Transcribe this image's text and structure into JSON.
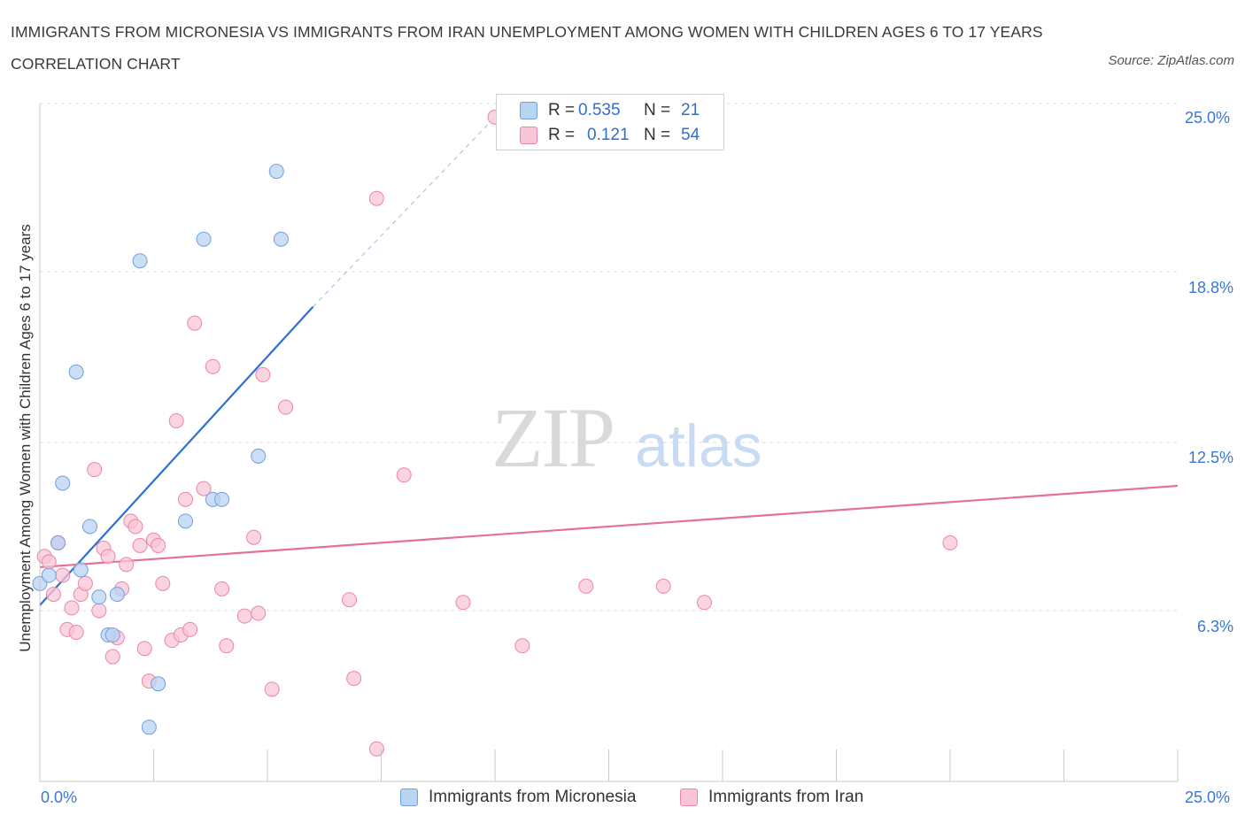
{
  "title": "IMMIGRANTS FROM MICRONESIA VS IMMIGRANTS FROM IRAN UNEMPLOYMENT AMONG WOMEN WITH CHILDREN AGES 6 TO 17 YEARS CORRELATION CHART",
  "source": "Source: ZipAtlas.com",
  "watermark": {
    "zip": "ZIP",
    "atlas": "atlas"
  },
  "legend": {
    "rows": [
      {
        "r_label": "R =",
        "r_value": "0.535",
        "n_label": "N =",
        "n_value": "21",
        "color": "#aecbf0"
      },
      {
        "r_label": "R =",
        "r_value": "0.121",
        "n_label": "N =",
        "n_value": "54",
        "color": "#f7bccd"
      }
    ]
  },
  "chart_data": {
    "type": "scatter",
    "title": "IMMIGRANTS FROM MICRONESIA VS IMMIGRANTS FROM IRAN UNEMPLOYMENT AMONG WOMEN WITH CHILDREN AGES 6 TO 17 YEARS CORRELATION CHART",
    "xlabel": "",
    "ylabel": "Unemployment Among Women with Children Ages 6 to 17 years",
    "xlim": [
      0,
      25
    ],
    "ylim": [
      0,
      25
    ],
    "x_tick_labels": [
      "0.0%",
      "25.0%"
    ],
    "y_tick_labels": [
      "6.3%",
      "12.5%",
      "18.8%",
      "25.0%"
    ],
    "y_ticks": [
      6.3,
      12.5,
      18.8,
      25.0
    ],
    "grid": true,
    "series": [
      {
        "name": "Immigrants from Micronesia",
        "color": "#6fa0e0",
        "fill": "#b9d3f3",
        "points": [
          [
            0.0,
            7.3
          ],
          [
            0.2,
            7.6
          ],
          [
            0.4,
            8.8
          ],
          [
            0.5,
            11.0
          ],
          [
            0.8,
            15.1
          ],
          [
            0.9,
            7.8
          ],
          [
            1.1,
            9.4
          ],
          [
            1.3,
            6.8
          ],
          [
            1.5,
            5.4
          ],
          [
            1.6,
            5.4
          ],
          [
            1.7,
            6.9
          ],
          [
            2.2,
            19.2
          ],
          [
            2.4,
            2.0
          ],
          [
            2.6,
            3.6
          ],
          [
            3.2,
            9.6
          ],
          [
            3.6,
            20.0
          ],
          [
            3.8,
            10.4
          ],
          [
            4.0,
            10.4
          ],
          [
            4.8,
            12.0
          ],
          [
            5.2,
            22.5
          ],
          [
            5.3,
            20.0
          ]
        ],
        "trend": {
          "x": [
            0.0,
            6.0
          ],
          "y": [
            6.5,
            17.5
          ],
          "dashed_to": [
            10.0,
            24.5
          ]
        }
      },
      {
        "name": "Immigrants from Iran",
        "color": "#ee85a6",
        "fill": "#f8c6d5",
        "points": [
          [
            0.1,
            8.3
          ],
          [
            0.2,
            8.1
          ],
          [
            0.3,
            6.9
          ],
          [
            0.4,
            8.8
          ],
          [
            0.5,
            7.6
          ],
          [
            0.6,
            5.6
          ],
          [
            0.7,
            6.4
          ],
          [
            0.8,
            5.5
          ],
          [
            0.9,
            6.9
          ],
          [
            1.0,
            7.3
          ],
          [
            1.2,
            11.5
          ],
          [
            1.3,
            6.3
          ],
          [
            1.4,
            8.6
          ],
          [
            1.5,
            8.3
          ],
          [
            1.6,
            4.6
          ],
          [
            1.7,
            5.3
          ],
          [
            1.8,
            7.1
          ],
          [
            1.9,
            8.0
          ],
          [
            2.0,
            9.6
          ],
          [
            2.1,
            9.4
          ],
          [
            2.2,
            8.7
          ],
          [
            2.3,
            4.9
          ],
          [
            2.4,
            3.7
          ],
          [
            2.5,
            8.9
          ],
          [
            2.6,
            8.7
          ],
          [
            2.7,
            7.3
          ],
          [
            2.9,
            5.2
          ],
          [
            3.0,
            13.3
          ],
          [
            3.1,
            5.4
          ],
          [
            3.2,
            10.4
          ],
          [
            3.3,
            5.6
          ],
          [
            3.4,
            16.9
          ],
          [
            3.6,
            10.8
          ],
          [
            3.8,
            15.3
          ],
          [
            4.0,
            7.1
          ],
          [
            4.1,
            5.0
          ],
          [
            4.5,
            6.1
          ],
          [
            4.7,
            9.0
          ],
          [
            4.8,
            6.2
          ],
          [
            4.9,
            15.0
          ],
          [
            5.1,
            3.4
          ],
          [
            5.4,
            13.8
          ],
          [
            6.8,
            6.7
          ],
          [
            6.9,
            3.8
          ],
          [
            7.4,
            1.2
          ],
          [
            7.4,
            21.5
          ],
          [
            8.0,
            11.3
          ],
          [
            9.3,
            6.6
          ],
          [
            10.0,
            24.5
          ],
          [
            10.6,
            5.0
          ],
          [
            12.0,
            7.2
          ],
          [
            13.7,
            7.2
          ],
          [
            14.6,
            6.6
          ],
          [
            20.0,
            8.8
          ]
        ],
        "trend": {
          "x": [
            0.0,
            25.0
          ],
          "y": [
            7.9,
            10.9
          ]
        }
      }
    ]
  }
}
